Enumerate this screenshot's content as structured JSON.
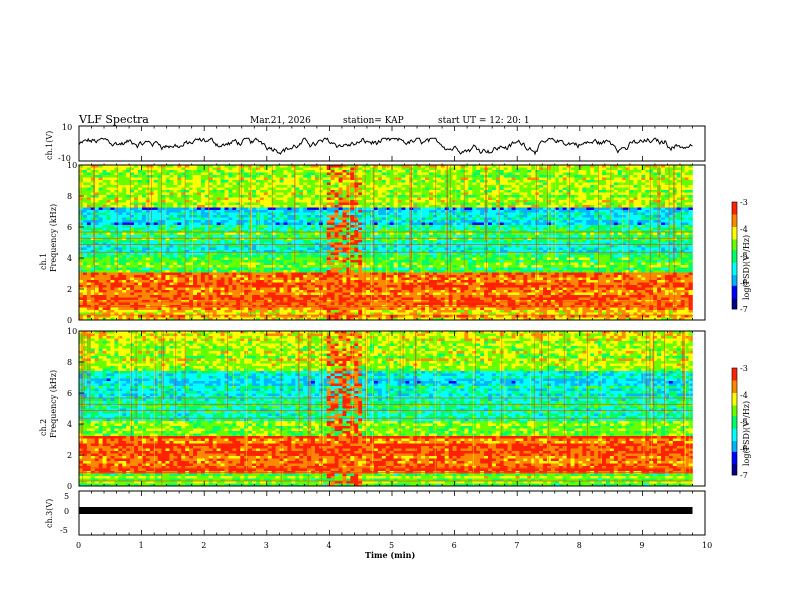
{
  "header": {
    "title": "VLF Spectra",
    "date": "Mar.21, 2026",
    "station": "station= KAP",
    "start_ut": "start UT =  12: 20: 1"
  },
  "colors": {
    "spectrum_scale": [
      "#00008b",
      "#0000ff",
      "#00b4ff",
      "#00ffff",
      "#00ff66",
      "#66ff00",
      "#ffff00",
      "#ff8800",
      "#ff2200",
      "#ffffff"
    ],
    "trace": "#000000"
  },
  "chart_data": [
    {
      "type": "line",
      "name": "ch1-waveform",
      "ylabel": "ch.1(V)",
      "ylim": [
        -10,
        10
      ],
      "yticks": [
        "10",
        "-10"
      ],
      "xlim": [
        0,
        10
      ],
      "note_values": "noise trace oscillating roughly between -6 and 3 V, ending near 9.8 min"
    },
    {
      "type": "heatmap",
      "name": "ch1-spectrogram",
      "ylabel": "ch.1 Frequency (kHz)",
      "ylim": [
        0,
        10
      ],
      "yticks": [
        "0",
        "2",
        "4",
        "6",
        "8",
        "10"
      ],
      "xlim": [
        0,
        10
      ],
      "data_end_min": 9.8,
      "colorbar": {
        "label": "log(PSD)(V²/Hz)",
        "range": [
          -7,
          -3
        ],
        "ticks": [
          "-3",
          "-4",
          "-5",
          "-6",
          "-7"
        ]
      },
      "bands_khz": [
        {
          "from": 0,
          "to": 1,
          "level": -3.8
        },
        {
          "from": 1,
          "to": 3,
          "level": -3.5
        },
        {
          "from": 3,
          "to": 4,
          "level": -4.7
        },
        {
          "from": 4,
          "to": 5,
          "level": -5.2
        },
        {
          "from": 5,
          "to": 6.2,
          "level": -4.9
        },
        {
          "from": 6.2,
          "to": 7.2,
          "level": -5.6
        },
        {
          "from": 7.2,
          "to": 10,
          "level": -4.4
        }
      ],
      "burst_min": [
        3.95,
        4.55
      ]
    },
    {
      "type": "heatmap",
      "name": "ch2-spectrogram",
      "ylabel": "ch.2 Frequency (kHz)",
      "ylim": [
        0,
        10
      ],
      "yticks": [
        "0",
        "2",
        "4",
        "6",
        "8",
        "10"
      ],
      "xlim": [
        0,
        10
      ],
      "data_end_min": 9.8,
      "colorbar": {
        "label": "log(PSD)(V²/Hz)",
        "range": [
          -7,
          -3
        ],
        "ticks": [
          "-3",
          "-4",
          "-5",
          "-6",
          "-7"
        ]
      },
      "bands_khz": [
        {
          "from": 0,
          "to": 0.8,
          "level": -4.6
        },
        {
          "from": 0.8,
          "to": 3.2,
          "level": -3.4
        },
        {
          "from": 3.2,
          "to": 4.2,
          "level": -4.7
        },
        {
          "from": 4.2,
          "to": 5.5,
          "level": -5.1
        },
        {
          "from": 5.5,
          "to": 7.5,
          "level": -5.4
        },
        {
          "from": 7.5,
          "to": 10,
          "level": -4.3
        }
      ],
      "burst_min": [
        3.95,
        4.55
      ]
    },
    {
      "type": "line",
      "name": "ch3-waveform",
      "ylabel": "ch.3(V)",
      "ylim": [
        -5,
        5
      ],
      "yticks": [
        "5",
        "0",
        "-5"
      ],
      "xlim": [
        0,
        10
      ],
      "constant_value": -1.2
    }
  ],
  "xaxis": {
    "label": "Time (min)",
    "ticks": [
      "0",
      "1",
      "2",
      "3",
      "4",
      "5",
      "6",
      "7",
      "8",
      "9",
      "10"
    ]
  }
}
